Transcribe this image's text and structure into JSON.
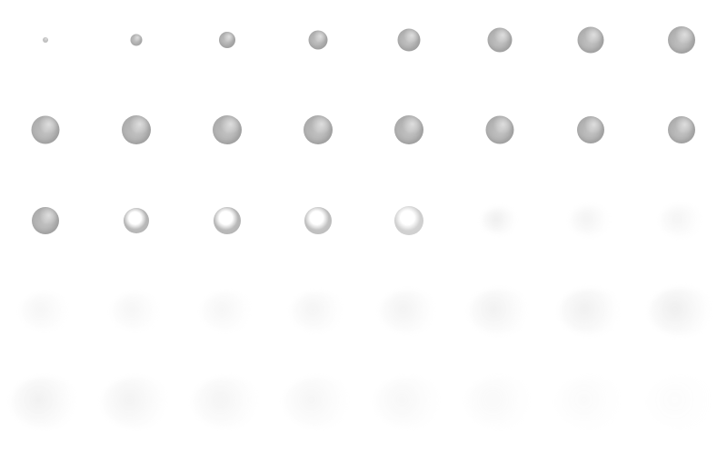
{
  "sprite_sheet": {
    "columns": 8,
    "rows": 5,
    "frames": [
      {
        "kind": "bubble",
        "size": 6,
        "opacity": 0.6
      },
      {
        "kind": "bubble",
        "size": 13,
        "opacity": 0.8
      },
      {
        "kind": "bubble",
        "size": 18,
        "opacity": 0.85
      },
      {
        "kind": "bubble",
        "size": 21,
        "opacity": 0.85
      },
      {
        "kind": "bubble",
        "size": 25,
        "opacity": 0.85
      },
      {
        "kind": "bubble",
        "size": 27,
        "opacity": 0.85
      },
      {
        "kind": "bubble",
        "size": 29,
        "opacity": 0.85
      },
      {
        "kind": "bubble",
        "size": 30,
        "opacity": 0.85
      },
      {
        "kind": "bubble",
        "size": 31,
        "opacity": 0.85
      },
      {
        "kind": "bubble",
        "size": 32,
        "opacity": 0.85
      },
      {
        "kind": "bubble",
        "size": 32,
        "opacity": 0.85
      },
      {
        "kind": "bubble",
        "size": 32,
        "opacity": 0.85
      },
      {
        "kind": "bubble",
        "size": 32,
        "opacity": 0.85
      },
      {
        "kind": "bubble",
        "size": 31,
        "opacity": 0.85
      },
      {
        "kind": "bubble",
        "size": 30,
        "opacity": 0.85
      },
      {
        "kind": "bubble",
        "size": 30,
        "opacity": 0.85
      },
      {
        "kind": "bubble",
        "size": 30,
        "opacity": 0.85
      },
      {
        "kind": "pop",
        "size": 28,
        "opacity": 0.85
      },
      {
        "kind": "pop",
        "size": 30,
        "opacity": 0.85
      },
      {
        "kind": "pop",
        "size": 30,
        "opacity": 0.75
      },
      {
        "kind": "pop",
        "size": 32,
        "opacity": 0.55
      },
      {
        "kind": "mist",
        "size": 40,
        "opacity": 0.55
      },
      {
        "kind": "mist",
        "size": 46,
        "opacity": 0.4
      },
      {
        "kind": "mist",
        "size": 48,
        "opacity": 0.35
      },
      {
        "kind": "mist",
        "size": 56,
        "opacity": 0.3
      },
      {
        "kind": "mist",
        "size": 56,
        "opacity": 0.3
      },
      {
        "kind": "mist",
        "size": 58,
        "opacity": 0.3
      },
      {
        "kind": "mist",
        "size": 60,
        "opacity": 0.35
      },
      {
        "kind": "mist",
        "size": 64,
        "opacity": 0.4
      },
      {
        "kind": "mist",
        "size": 68,
        "opacity": 0.45
      },
      {
        "kind": "mist",
        "size": 70,
        "opacity": 0.5
      },
      {
        "kind": "mist",
        "size": 72,
        "opacity": 0.55
      },
      {
        "kind": "mist",
        "size": 76,
        "opacity": 0.45
      },
      {
        "kind": "mist",
        "size": 76,
        "opacity": 0.4
      },
      {
        "kind": "mist",
        "size": 76,
        "opacity": 0.35
      },
      {
        "kind": "mist",
        "size": 76,
        "opacity": 0.3
      },
      {
        "kind": "mist",
        "size": 76,
        "opacity": 0.25
      },
      {
        "kind": "mist",
        "size": 76,
        "opacity": 0.2
      },
      {
        "kind": "mist",
        "size": 76,
        "opacity": 0.15
      },
      {
        "kind": "mist",
        "size": 76,
        "opacity": 0.1
      }
    ]
  }
}
